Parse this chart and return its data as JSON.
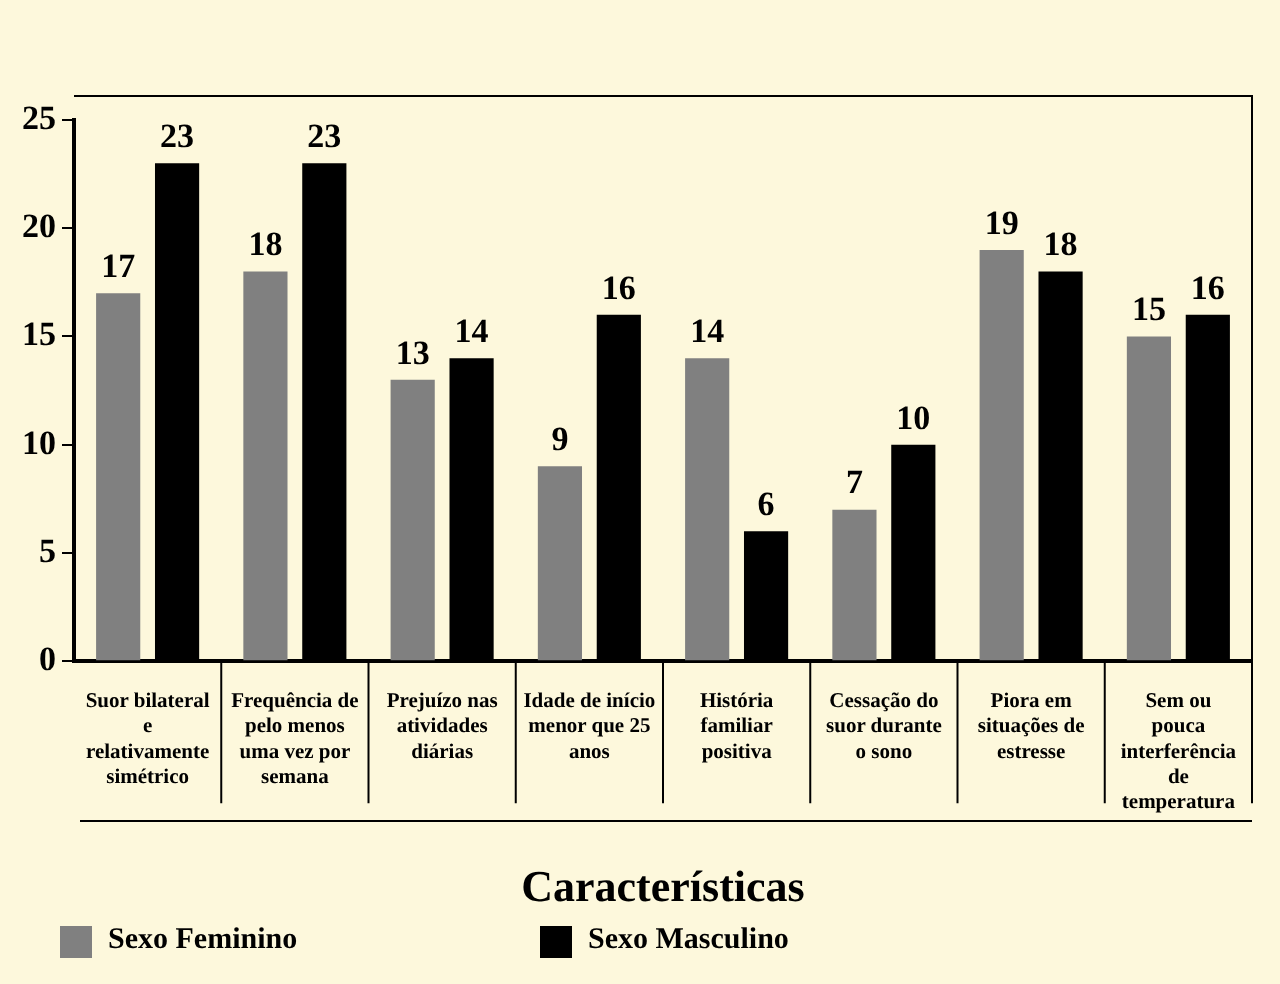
{
  "chart_data": {
    "type": "bar",
    "xlabel": "Características",
    "categories": [
      "Suor bilateral\ne\nrelativamente\nsimétrico",
      "Frequência de\npelo menos\numa vez por\nsemana",
      "Prejuízo nas\natividades\ndiárias",
      "Idade de início\nmenor que 25\nanos",
      "História\nfamiliar\npositiva",
      "Cessação do\nsuor durante\no sono",
      "Piora em\nsituações de\nestresse",
      "Sem ou\npouca\ninterferência\nde\ntemperatura"
    ],
    "series": [
      {
        "name": "Sexo Feminino",
        "color": "#808080",
        "values": [
          17,
          18,
          13,
          9,
          14,
          7,
          19,
          15
        ]
      },
      {
        "name": "Sexo Masculino",
        "color": "#000000",
        "values": [
          23,
          23,
          14,
          16,
          6,
          10,
          18,
          16
        ]
      }
    ],
    "ylim": [
      0,
      25
    ],
    "yticks": [
      0,
      5,
      10,
      15,
      20,
      25
    ],
    "grid": false,
    "legend": "bottom left",
    "data_labels": true
  }
}
